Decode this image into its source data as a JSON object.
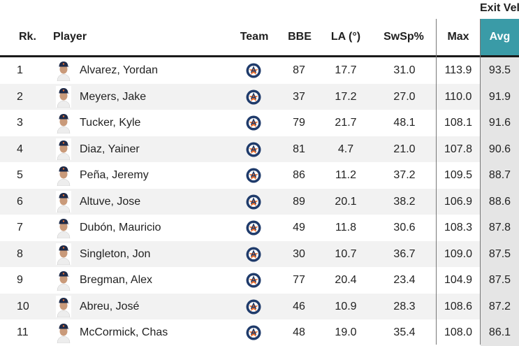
{
  "table": {
    "group_header": "Exit Vel",
    "columns": {
      "rank": "Rk.",
      "player": "Player",
      "team": "Team",
      "bbe": "BBE",
      "la": "LA (°)",
      "swsp": "SwSp%",
      "max": "Max",
      "avg": "Avg"
    },
    "colors": {
      "avg_header": "#3a9ba7",
      "avg_column": "#e5e5e5",
      "alt_row": "#f2f2f2",
      "team_logo": "#1f3b6b",
      "team_star": "#e96d2c"
    },
    "team_icon": "astros-logo-icon",
    "rows": [
      {
        "rank": "1",
        "player": "Alvarez, Yordan",
        "bbe": "87",
        "la": "17.7",
        "swsp": "31.0",
        "max": "113.9",
        "avg": "93.5"
      },
      {
        "rank": "2",
        "player": "Meyers, Jake",
        "bbe": "37",
        "la": "17.2",
        "swsp": "27.0",
        "max": "110.0",
        "avg": "91.9"
      },
      {
        "rank": "3",
        "player": "Tucker, Kyle",
        "bbe": "79",
        "la": "21.7",
        "swsp": "48.1",
        "max": "108.1",
        "avg": "91.6"
      },
      {
        "rank": "4",
        "player": "Diaz, Yainer",
        "bbe": "81",
        "la": "4.7",
        "swsp": "21.0",
        "max": "107.8",
        "avg": "90.6"
      },
      {
        "rank": "5",
        "player": "Peña, Jeremy",
        "bbe": "86",
        "la": "11.2",
        "swsp": "37.2",
        "max": "109.5",
        "avg": "88.7"
      },
      {
        "rank": "6",
        "player": "Altuve, Jose",
        "bbe": "89",
        "la": "20.1",
        "swsp": "38.2",
        "max": "106.9",
        "avg": "88.6"
      },
      {
        "rank": "7",
        "player": "Dubón, Mauricio",
        "bbe": "49",
        "la": "11.8",
        "swsp": "30.6",
        "max": "108.3",
        "avg": "87.8"
      },
      {
        "rank": "8",
        "player": "Singleton, Jon",
        "bbe": "30",
        "la": "10.7",
        "swsp": "36.7",
        "max": "109.0",
        "avg": "87.5"
      },
      {
        "rank": "9",
        "player": "Bregman, Alex",
        "bbe": "77",
        "la": "20.4",
        "swsp": "23.4",
        "max": "104.9",
        "avg": "87.5"
      },
      {
        "rank": "10",
        "player": "Abreu, José",
        "bbe": "46",
        "la": "10.9",
        "swsp": "28.3",
        "max": "108.6",
        "avg": "87.2"
      },
      {
        "rank": "11",
        "player": "McCormick, Chas",
        "bbe": "48",
        "la": "19.0",
        "swsp": "35.4",
        "max": "108.0",
        "avg": "86.1"
      }
    ]
  }
}
